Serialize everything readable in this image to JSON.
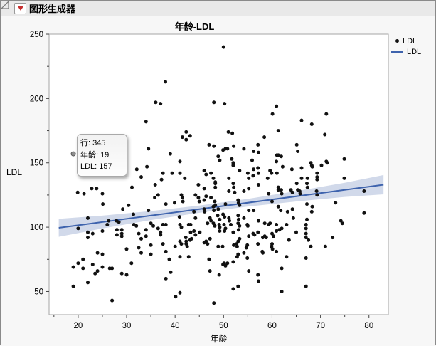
{
  "header": {
    "title": "图形生成器"
  },
  "icons": {
    "disclosure": "open-disclosure-triangle",
    "red_triangle": "red-triangle-menu"
  },
  "tooltip": {
    "rows": [
      {
        "label": "行:",
        "value": "345"
      },
      {
        "label": "年龄:",
        "value": "19"
      },
      {
        "label": "LDL:",
        "value": "157"
      }
    ]
  },
  "colors": {
    "point": "#111111",
    "fit_line": "#3e63ad",
    "band": "rgba(90,120,180,0.28)",
    "plot_border": "#a6a6a6",
    "header_bg": "#e9e9e9",
    "hover_point": "#8f8f8f"
  },
  "chart_data": {
    "type": "scatter",
    "title": "年龄-LDL",
    "xlabel": "年龄",
    "ylabel": "LDL",
    "xlim": [
      14,
      84
    ],
    "ylim": [
      32,
      250
    ],
    "x_ticks": [
      20,
      30,
      40,
      50,
      60,
      70,
      80
    ],
    "x_minor_ticks": [
      15,
      25,
      35,
      45,
      55,
      65,
      75
    ],
    "y_ticks": [
      50,
      100,
      150,
      200,
      250
    ],
    "y_minor_ticks": [
      75,
      125,
      175,
      225
    ],
    "grid": false,
    "legend_position": "right",
    "legend": [
      {
        "label": "LDL",
        "marker": "dot"
      },
      {
        "label": "LDL",
        "marker": "line"
      }
    ],
    "hover_point": {
      "age": 19,
      "ldl": 157,
      "row": 345
    },
    "fit_line": {
      "x": [
        16,
        83
      ],
      "y": [
        99.5,
        133
      ]
    },
    "confidence_band": {
      "ages": [
        16,
        25,
        35,
        45,
        55,
        65,
        75,
        83
      ],
      "lo": [
        92.5,
        99,
        105.5,
        111.2,
        116,
        120,
        123.5,
        125.5
      ],
      "hi": [
        106.5,
        109,
        112.5,
        116.8,
        122,
        128,
        134.5,
        140.5
      ]
    },
    "points": [
      [
        36,
        197
      ],
      [
        37,
        196
      ],
      [
        34,
        182
      ],
      [
        50,
        240
      ],
      [
        38,
        213
      ],
      [
        48,
        197
      ],
      [
        50.2,
        196
      ],
      [
        60.9,
        194
      ],
      [
        60.1,
        188
      ],
      [
        71.2,
        188
      ],
      [
        66.1,
        183
      ],
      [
        68.2,
        180
      ],
      [
        34.5,
        161
      ],
      [
        32.1,
        145
      ],
      [
        34.2,
        147
      ],
      [
        33,
        139
      ],
      [
        37.5,
        142
      ],
      [
        37.2,
        137
      ],
      [
        35.9,
        133
      ],
      [
        31.1,
        131
      ],
      [
        19.9,
        127
      ],
      [
        21.2,
        126
      ],
      [
        22.8,
        130
      ],
      [
        23.8,
        130
      ],
      [
        25,
        126
      ],
      [
        25.1,
        118
      ],
      [
        30.4,
        117
      ],
      [
        29.2,
        114
      ],
      [
        34.5,
        113
      ],
      [
        22,
        107
      ],
      [
        26.3,
        105
      ],
      [
        27.9,
        105
      ],
      [
        28.4,
        104
      ],
      [
        31.4,
        110
      ],
      [
        35.8,
        123
      ],
      [
        36.5,
        125
      ],
      [
        41.5,
        170
      ],
      [
        42.3,
        174
      ],
      [
        42.3,
        168
      ],
      [
        43.1,
        171
      ],
      [
        51,
        174
      ],
      [
        51.8,
        173
      ],
      [
        58.4,
        170
      ],
      [
        47,
        164
      ],
      [
        48,
        163
      ],
      [
        49.9,
        160
      ],
      [
        50.4,
        161
      ],
      [
        50.8,
        161
      ],
      [
        52.1,
        163
      ],
      [
        54.2,
        161
      ],
      [
        56.2,
        159
      ],
      [
        57.1,
        164
      ],
      [
        57.2,
        158
      ],
      [
        39,
        157
      ],
      [
        41,
        151
      ],
      [
        48.9,
        155
      ],
      [
        49.2,
        152
      ],
      [
        51.7,
        153
      ],
      [
        52,
        150
      ],
      [
        52,
        148
      ],
      [
        55.9,
        152
      ],
      [
        57.1,
        146
      ],
      [
        61,
        156
      ],
      [
        60.9,
        151
      ],
      [
        39.4,
        142
      ],
      [
        41,
        142
      ],
      [
        42,
        138
      ],
      [
        46,
        144
      ],
      [
        46.4,
        141
      ],
      [
        47.4,
        142
      ],
      [
        47.9,
        138
      ],
      [
        48.3,
        135
      ],
      [
        51.1,
        138
      ],
      [
        53.3,
        144
      ],
      [
        55,
        142
      ],
      [
        55.2,
        138
      ],
      [
        56.1,
        140
      ],
      [
        56.2,
        145
      ],
      [
        57.2,
        142
      ],
      [
        59.1,
        138
      ],
      [
        59.6,
        144
      ],
      [
        59.9,
        142
      ],
      [
        61,
        142
      ],
      [
        44.8,
        133
      ],
      [
        46,
        130
      ],
      [
        48.3,
        134
      ],
      [
        48.3,
        131
      ],
      [
        51.1,
        128
      ],
      [
        52,
        134
      ],
      [
        52.1,
        131
      ],
      [
        52.3,
        127
      ],
      [
        54.2,
        128
      ],
      [
        55.2,
        130
      ],
      [
        57.2,
        133
      ],
      [
        59.3,
        126
      ],
      [
        41.3,
        125
      ],
      [
        41.5,
        123
      ],
      [
        41.6,
        120
      ],
      [
        44.2,
        125
      ],
      [
        44.8,
        123
      ],
      [
        45,
        120
      ],
      [
        46,
        121
      ],
      [
        46.4,
        124
      ],
      [
        47.4,
        123
      ],
      [
        48.2,
        120
      ],
      [
        48.3,
        117
      ],
      [
        50.4,
        118
      ],
      [
        53,
        121
      ],
      [
        53.1,
        119
      ],
      [
        53.3,
        117
      ],
      [
        60,
        120
      ],
      [
        38.1,
        118
      ],
      [
        39.9,
        119
      ],
      [
        40.9,
        108
      ],
      [
        43.9,
        112
      ],
      [
        44.2,
        107
      ],
      [
        46,
        114
      ],
      [
        46.1,
        112
      ],
      [
        47.2,
        107
      ],
      [
        47.4,
        105
      ],
      [
        47.9,
        116
      ],
      [
        48,
        113
      ],
      [
        48.9,
        114
      ],
      [
        48.8,
        109
      ],
      [
        49.2,
        106
      ],
      [
        49.9,
        110
      ],
      [
        50.2,
        108
      ],
      [
        51.1,
        107
      ],
      [
        51.2,
        105
      ],
      [
        53,
        109
      ],
      [
        53.1,
        106
      ],
      [
        54.2,
        107
      ],
      [
        55.2,
        113
      ],
      [
        56.2,
        113
      ],
      [
        57.2,
        105
      ],
      [
        61.3,
        175
      ],
      [
        70.9,
        172
      ],
      [
        65.1,
        164
      ],
      [
        65.3,
        159
      ],
      [
        61.3,
        156
      ],
      [
        61.9,
        155
      ],
      [
        62.2,
        147
      ],
      [
        64.1,
        145
      ],
      [
        66.1,
        146
      ],
      [
        68,
        150
      ],
      [
        68.2,
        148
      ],
      [
        68.3,
        147
      ],
      [
        70.2,
        148
      ],
      [
        71.2,
        151
      ],
      [
        71.4,
        150
      ],
      [
        74.9,
        153
      ],
      [
        69.3,
        142
      ],
      [
        69.3,
        139
      ],
      [
        69.3,
        137
      ],
      [
        69.2,
        128
      ],
      [
        69.3,
        125
      ],
      [
        66.1,
        138
      ],
      [
        67.3,
        138
      ],
      [
        67.2,
        134
      ],
      [
        67.3,
        131
      ],
      [
        65.1,
        134
      ],
      [
        65.3,
        129
      ],
      [
        63.9,
        129
      ],
      [
        64.2,
        127
      ],
      [
        65.7,
        128
      ],
      [
        65.8,
        126
      ],
      [
        61.3,
        131
      ],
      [
        61.3,
        129
      ],
      [
        61.9,
        129
      ],
      [
        62,
        126
      ],
      [
        74.9,
        138
      ],
      [
        73.1,
        119
      ],
      [
        67.2,
        118
      ],
      [
        68.3,
        116
      ],
      [
        68.2,
        112
      ],
      [
        61.3,
        116
      ],
      [
        61.8,
        113
      ],
      [
        63.2,
        112
      ],
      [
        64.2,
        114
      ],
      [
        64.4,
        107
      ],
      [
        67.2,
        106
      ],
      [
        74.2,
        105
      ],
      [
        79,
        128
      ],
      [
        79,
        111
      ],
      [
        20,
        99
      ],
      [
        22,
        96
      ],
      [
        22,
        92
      ],
      [
        23,
        95
      ],
      [
        25,
        97
      ],
      [
        26,
        102
      ],
      [
        28,
        98
      ],
      [
        28,
        94
      ],
      [
        29,
        98
      ],
      [
        29,
        95
      ],
      [
        29,
        93
      ],
      [
        31.5,
        102
      ],
      [
        32,
        101
      ],
      [
        32.5,
        95
      ],
      [
        33,
        91
      ],
      [
        34,
        93
      ],
      [
        34,
        98
      ],
      [
        35,
        103
      ],
      [
        35.5,
        101
      ],
      [
        36.5,
        99
      ],
      [
        37,
        96
      ],
      [
        37,
        94
      ],
      [
        37.5,
        102
      ],
      [
        37.5,
        87
      ],
      [
        35,
        86
      ],
      [
        32.5,
        84
      ],
      [
        33,
        80
      ],
      [
        35,
        79
      ],
      [
        25,
        79
      ],
      [
        24,
        80
      ],
      [
        21,
        75
      ],
      [
        20,
        72
      ],
      [
        19,
        69
      ],
      [
        21,
        68
      ],
      [
        23,
        71
      ],
      [
        23.5,
        64
      ],
      [
        24,
        66
      ],
      [
        25,
        69
      ],
      [
        26.5,
        68
      ],
      [
        27,
        68
      ],
      [
        29,
        64
      ],
      [
        30,
        63
      ],
      [
        30,
        83
      ],
      [
        22,
        57
      ],
      [
        19,
        54
      ],
      [
        27,
        43
      ],
      [
        31,
        72
      ],
      [
        38.1,
        102
      ],
      [
        41,
        102
      ],
      [
        41.3,
        100
      ],
      [
        42.8,
        102
      ],
      [
        43.2,
        102
      ],
      [
        46.7,
        103
      ],
      [
        47.9,
        103
      ],
      [
        48.2,
        101
      ],
      [
        49.1,
        102
      ],
      [
        49.2,
        100
      ],
      [
        50.1,
        102
      ],
      [
        50.4,
        99
      ],
      [
        51.5,
        102
      ],
      [
        53,
        103
      ],
      [
        53.3,
        101
      ],
      [
        54.9,
        102
      ],
      [
        55,
        101
      ],
      [
        58.5,
        103
      ],
      [
        59.3,
        102
      ],
      [
        59.6,
        103
      ],
      [
        60.9,
        102
      ],
      [
        43.2,
        96
      ],
      [
        43.9,
        97
      ],
      [
        44.2,
        94
      ],
      [
        45.1,
        96
      ],
      [
        49.2,
        97
      ],
      [
        50.2,
        97
      ],
      [
        52,
        96
      ],
      [
        53.1,
        98
      ],
      [
        55.2,
        93
      ],
      [
        56.1,
        95
      ],
      [
        56.4,
        94
      ],
      [
        57.1,
        96
      ],
      [
        58.1,
        92
      ],
      [
        58.5,
        93
      ],
      [
        58.8,
        92
      ],
      [
        60,
        95
      ],
      [
        60.3,
        93
      ],
      [
        60.9,
        97
      ],
      [
        40,
        85
      ],
      [
        41,
        89
      ],
      [
        41.3,
        87
      ],
      [
        42.2,
        92
      ],
      [
        42.3,
        89
      ],
      [
        42.3,
        87
      ],
      [
        42.5,
        85
      ],
      [
        43.1,
        90
      ],
      [
        43.4,
        91
      ],
      [
        46,
        88
      ],
      [
        46.4,
        89
      ],
      [
        46.7,
        87
      ],
      [
        47.2,
        91
      ],
      [
        48.9,
        85
      ],
      [
        49.8,
        85
      ],
      [
        52.1,
        86
      ],
      [
        52.7,
        87
      ],
      [
        52.8,
        85
      ],
      [
        53,
        89
      ],
      [
        53.3,
        91
      ],
      [
        54.7,
        84
      ],
      [
        54.9,
        86
      ],
      [
        57.1,
        87
      ],
      [
        58.1,
        80
      ],
      [
        59.9,
        85
      ],
      [
        60,
        87
      ],
      [
        60.1,
        83
      ],
      [
        60.9,
        81
      ],
      [
        38.1,
        81
      ],
      [
        38.8,
        75
      ],
      [
        41,
        77
      ],
      [
        42.8,
        77
      ],
      [
        47,
        75
      ],
      [
        50.1,
        72
      ],
      [
        50.4,
        70
      ],
      [
        50.8,
        72
      ],
      [
        52,
        73
      ],
      [
        52.8,
        77
      ],
      [
        53,
        79
      ],
      [
        54.2,
        80
      ],
      [
        54.9,
        76
      ],
      [
        58,
        81
      ],
      [
        39.1,
        65
      ],
      [
        47.2,
        66
      ],
      [
        49.1,
        63
      ],
      [
        49.9,
        71
      ],
      [
        55.2,
        66
      ],
      [
        57.1,
        63
      ],
      [
        57.2,
        58
      ],
      [
        38.1,
        60
      ],
      [
        40.1,
        46
      ],
      [
        41,
        49
      ],
      [
        52,
        52
      ],
      [
        53,
        54
      ],
      [
        48,
        41
      ],
      [
        61.5,
        98
      ],
      [
        62,
        99
      ],
      [
        63,
        102
      ],
      [
        63.5,
        90
      ],
      [
        65,
        96
      ],
      [
        67,
        99
      ],
      [
        67,
        102
      ],
      [
        67,
        95
      ],
      [
        67,
        92
      ],
      [
        67.5,
        90
      ],
      [
        68,
        85
      ],
      [
        63,
        77
      ],
      [
        67,
        76
      ],
      [
        62,
        68
      ],
      [
        71,
        85
      ],
      [
        72.5,
        92
      ],
      [
        74.5,
        103
      ],
      [
        67,
        54
      ],
      [
        62,
        50
      ]
    ]
  }
}
